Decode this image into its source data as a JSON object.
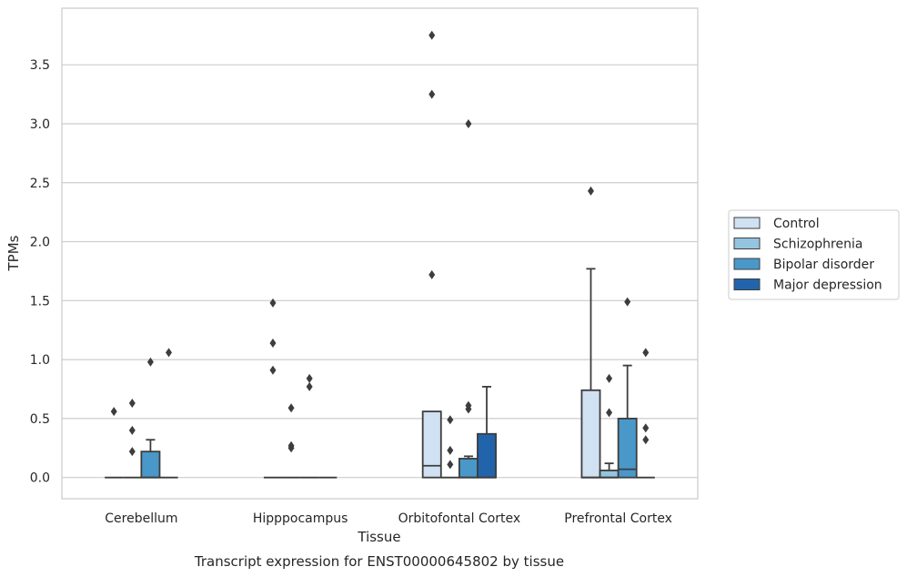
{
  "chart_data": {
    "type": "boxplot",
    "title": "Transcript expression for ENST00000645802 by tissue",
    "xlabel": "Tissue",
    "ylabel": "TPMs",
    "ylim": [
      -0.18,
      3.98
    ],
    "yticks": [
      "0.0",
      "0.5",
      "1.0",
      "1.5",
      "2.0",
      "2.5",
      "3.0",
      "3.5"
    ],
    "grid": "horizontal",
    "legend_position": "right",
    "categories": [
      "Cerebellum",
      "Hipppocampus",
      "Orbitofontal Cortex",
      "Prefrontal Cortex"
    ],
    "series": [
      {
        "name": "Control",
        "color": "#d0e1f2",
        "boxes": [
          {
            "q1": 0,
            "median": 0,
            "q3": 0,
            "whisker_low": 0,
            "whisker_high": 0,
            "outliers": [
              0.56
            ]
          },
          {
            "q1": 0,
            "median": 0,
            "q3": 0,
            "whisker_low": 0,
            "whisker_high": 0,
            "outliers": [
              1.48,
              1.14,
              0.91
            ]
          },
          {
            "q1": 0,
            "median": 0.1,
            "q3": 0.56,
            "whisker_low": 0,
            "whisker_high": 0.56,
            "outliers": [
              3.75,
              3.25,
              1.72
            ]
          },
          {
            "q1": 0,
            "median": 0,
            "q3": 0.74,
            "whisker_low": 0,
            "whisker_high": 1.77,
            "outliers": [
              2.43
            ]
          }
        ]
      },
      {
        "name": "Schizophrenia",
        "color": "#94c4df",
        "boxes": [
          {
            "q1": 0,
            "median": 0,
            "q3": 0,
            "whisker_low": 0,
            "whisker_high": 0,
            "outliers": [
              0.63,
              0.4,
              0.22
            ]
          },
          {
            "q1": 0,
            "median": 0,
            "q3": 0,
            "whisker_low": 0,
            "whisker_high": 0,
            "outliers": [
              0.59,
              0.27,
              0.25
            ]
          },
          {
            "q1": 0,
            "median": 0,
            "q3": 0,
            "whisker_low": 0,
            "whisker_high": 0,
            "outliers": [
              0.49,
              0.23,
              0.11
            ]
          },
          {
            "q1": 0,
            "median": 0,
            "q3": 0.06,
            "whisker_low": 0,
            "whisker_high": 0.12,
            "outliers": [
              0.84,
              0.55
            ]
          }
        ]
      },
      {
        "name": "Bipolar disorder",
        "color": "#4a98c9",
        "boxes": [
          {
            "q1": 0,
            "median": 0,
            "q3": 0.22,
            "whisker_low": 0,
            "whisker_high": 0.32,
            "outliers": [
              0.98
            ]
          },
          {
            "q1": 0,
            "median": 0,
            "q3": 0,
            "whisker_low": 0,
            "whisker_high": 0,
            "outliers": [
              0.84,
              0.77
            ]
          },
          {
            "q1": 0,
            "median": 0,
            "q3": 0.16,
            "whisker_low": 0,
            "whisker_high": 0.18,
            "outliers": [
              3.0,
              0.61,
              0.58
            ]
          },
          {
            "q1": 0,
            "median": 0.07,
            "q3": 0.5,
            "whisker_low": 0,
            "whisker_high": 0.95,
            "outliers": [
              1.49
            ]
          }
        ]
      },
      {
        "name": "Major depression",
        "color": "#2264ab",
        "boxes": [
          {
            "q1": 0,
            "median": 0,
            "q3": 0,
            "whisker_low": 0,
            "whisker_high": 0,
            "outliers": [
              1.06
            ]
          },
          {
            "q1": 0,
            "median": 0,
            "q3": 0,
            "whisker_low": 0,
            "whisker_high": 0,
            "outliers": []
          },
          {
            "q1": 0,
            "median": 0,
            "q3": 0.37,
            "whisker_low": 0,
            "whisker_high": 0.77,
            "outliers": []
          },
          {
            "q1": 0,
            "median": 0,
            "q3": 0,
            "whisker_low": 0,
            "whisker_high": 0,
            "outliers": [
              1.06,
              0.42,
              0.32
            ]
          }
        ]
      }
    ]
  }
}
